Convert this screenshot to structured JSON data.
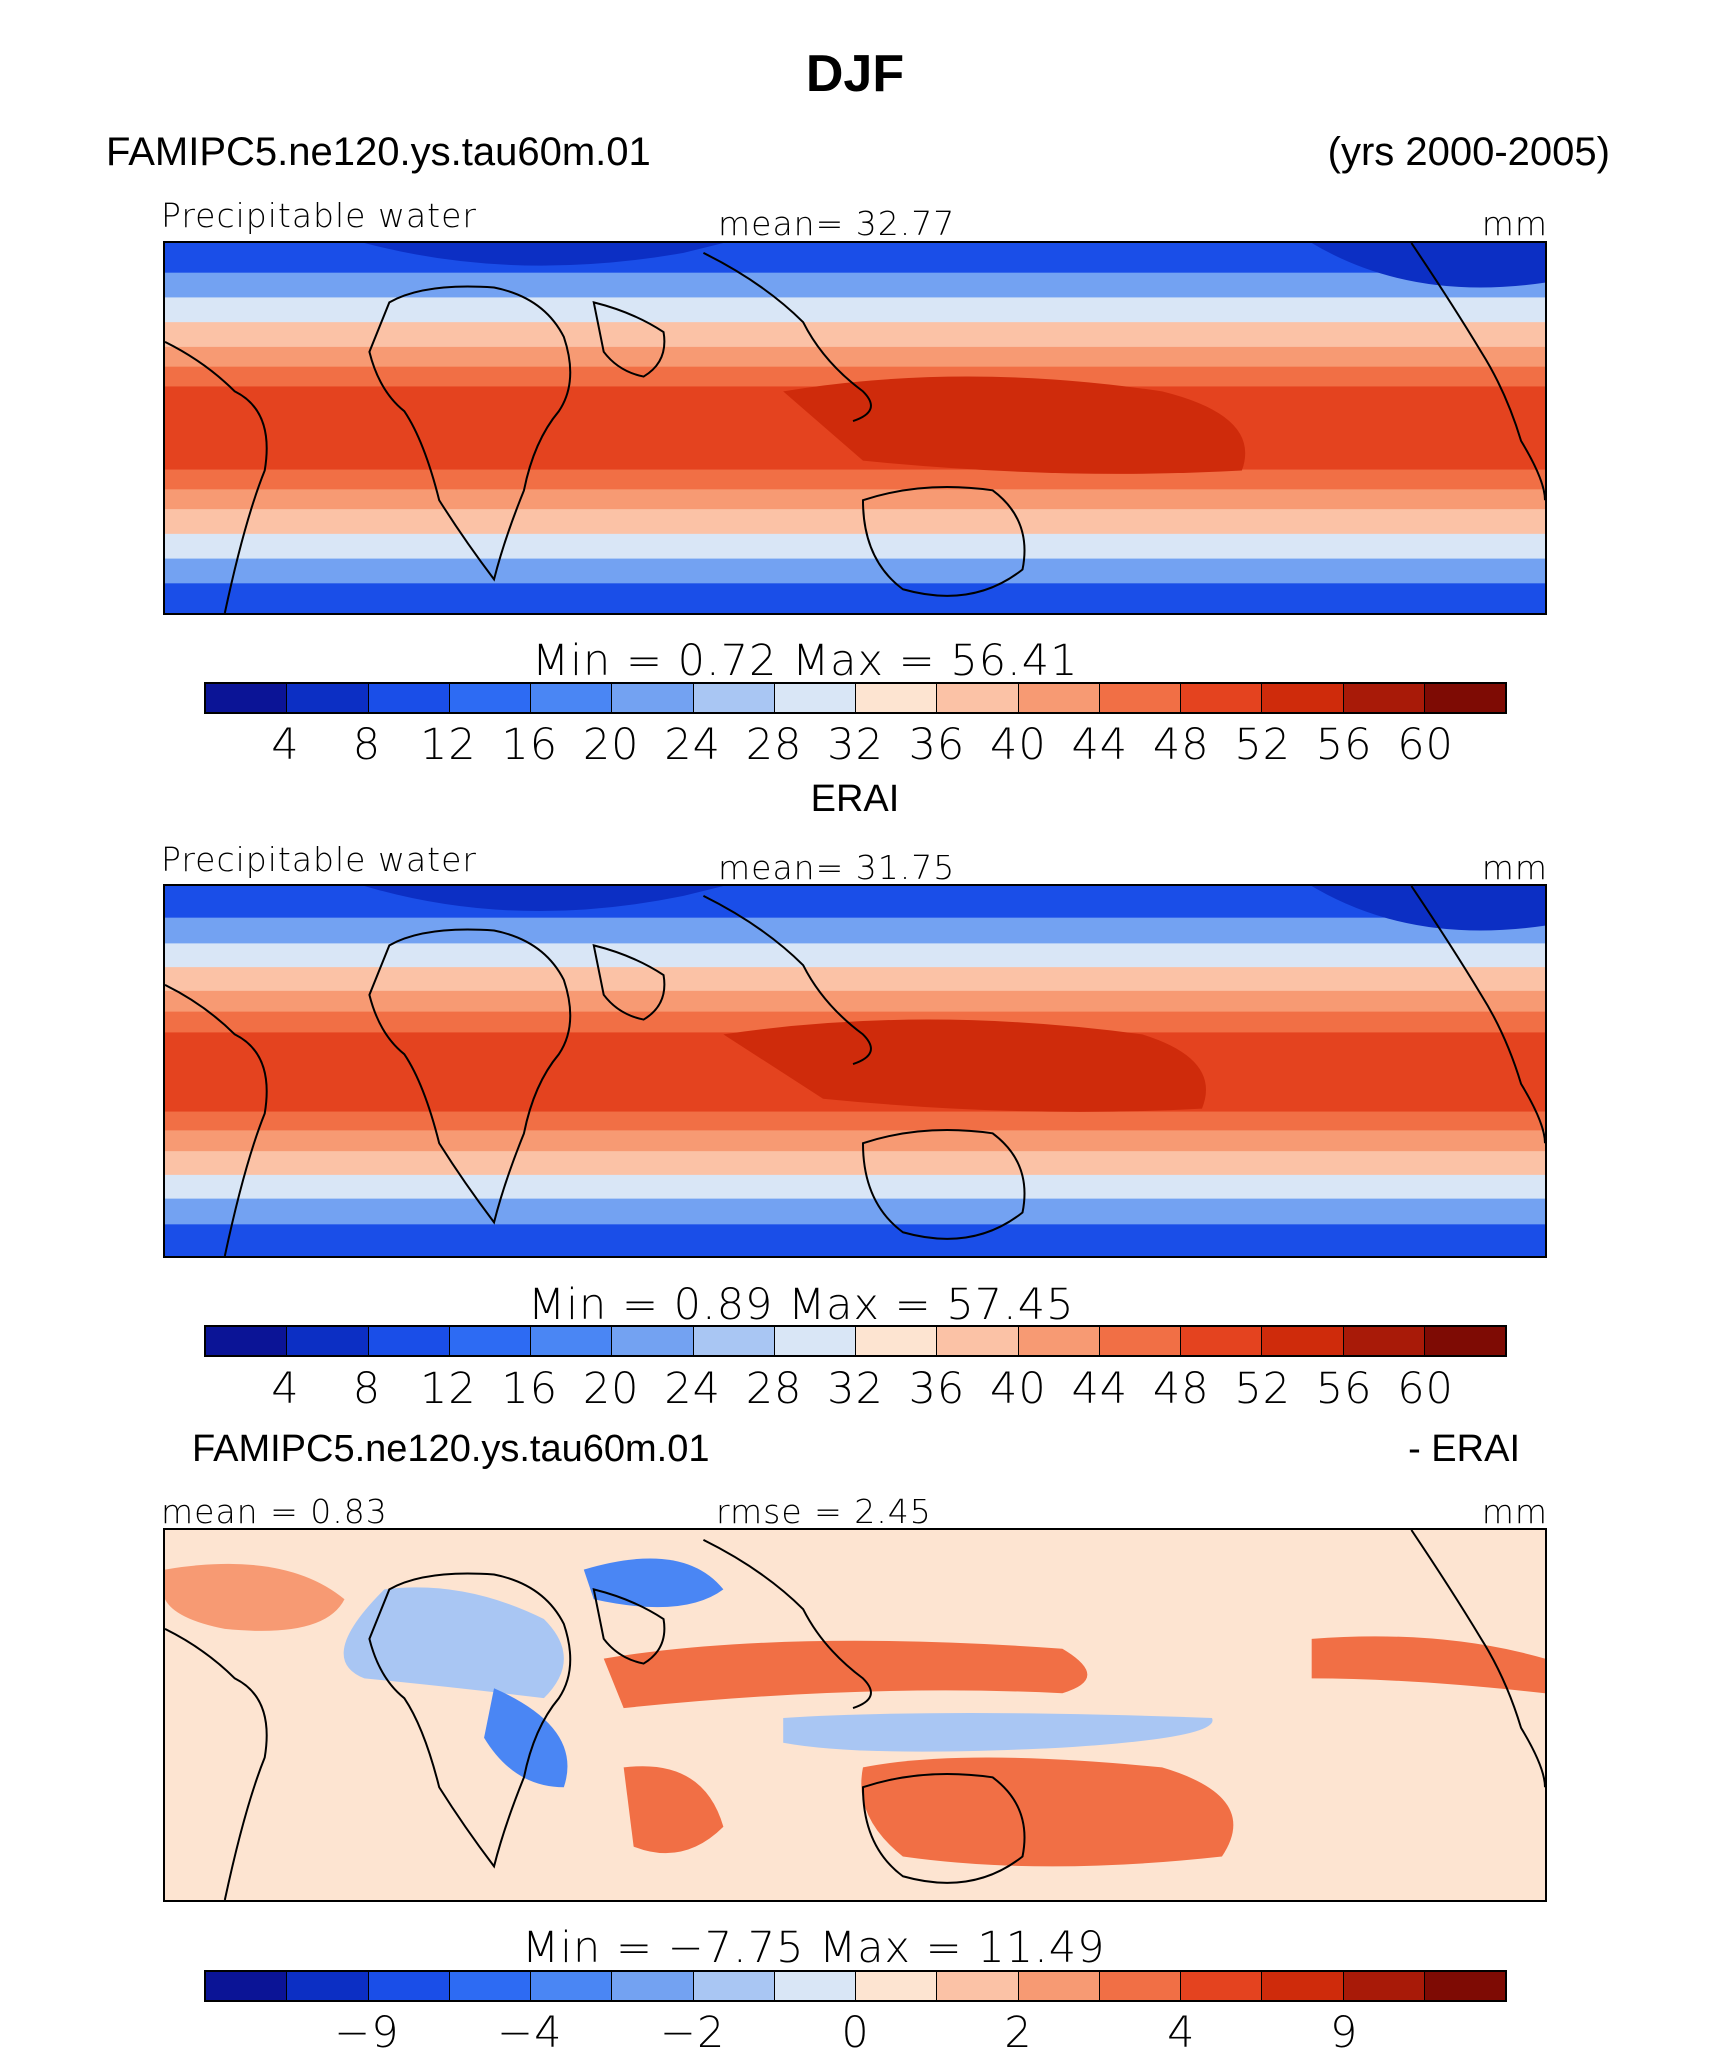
{
  "figure": {
    "title": "DJF",
    "top_case": "FAMIPC5.ne120.ys.tau60m.01",
    "years": "(yrs 2000-2005)",
    "middle_case": "ERAI",
    "diff_case": "FAMIPC5.ne120.ys.tau60m.01",
    "diff_minus": "- ERAI"
  },
  "colors": {
    "palette": [
      "#0b1496",
      "#0c2fc4",
      "#1a4ee8",
      "#2d6bf3",
      "#4a86f4",
      "#73a2f2",
      "#a9c6f3",
      "#d9e6f6",
      "#fde4d1",
      "#fbc2a6",
      "#f79a73",
      "#f16f45",
      "#e4431f",
      "#cf2b0b",
      "#a81a08",
      "#7e0b04"
    ],
    "land": "#000000"
  },
  "panels": [
    {
      "id": "model",
      "left_label": "Precipitable water",
      "center_label": "mean=   32.77",
      "right_label": "mm",
      "minmax": "Min  =     0.72  Max  =    56.41",
      "colorbar_ticks": [
        "4",
        "8",
        "12",
        "16",
        "20",
        "24",
        "28",
        "32",
        "36",
        "40",
        "44",
        "48",
        "52",
        "56",
        "60"
      ]
    },
    {
      "id": "obs",
      "left_label": "Precipitable water",
      "center_label": "mean=   31.75",
      "right_label": "mm",
      "minmax": "Min  =     0.89  Max  =    57.45",
      "colorbar_ticks": [
        "4",
        "8",
        "12",
        "16",
        "20",
        "24",
        "28",
        "32",
        "36",
        "40",
        "44",
        "48",
        "52",
        "56",
        "60"
      ]
    },
    {
      "id": "diff",
      "left_label": "mean =    0.83",
      "center_label": "rmse  =    2.45",
      "right_label": "mm",
      "minmax": "Min  =   −7.75  Max  =    11.49",
      "colorbar_ticks": [
        "−9",
        "−4",
        "−2",
        "0",
        "2",
        "4",
        "9"
      ]
    }
  ]
}
